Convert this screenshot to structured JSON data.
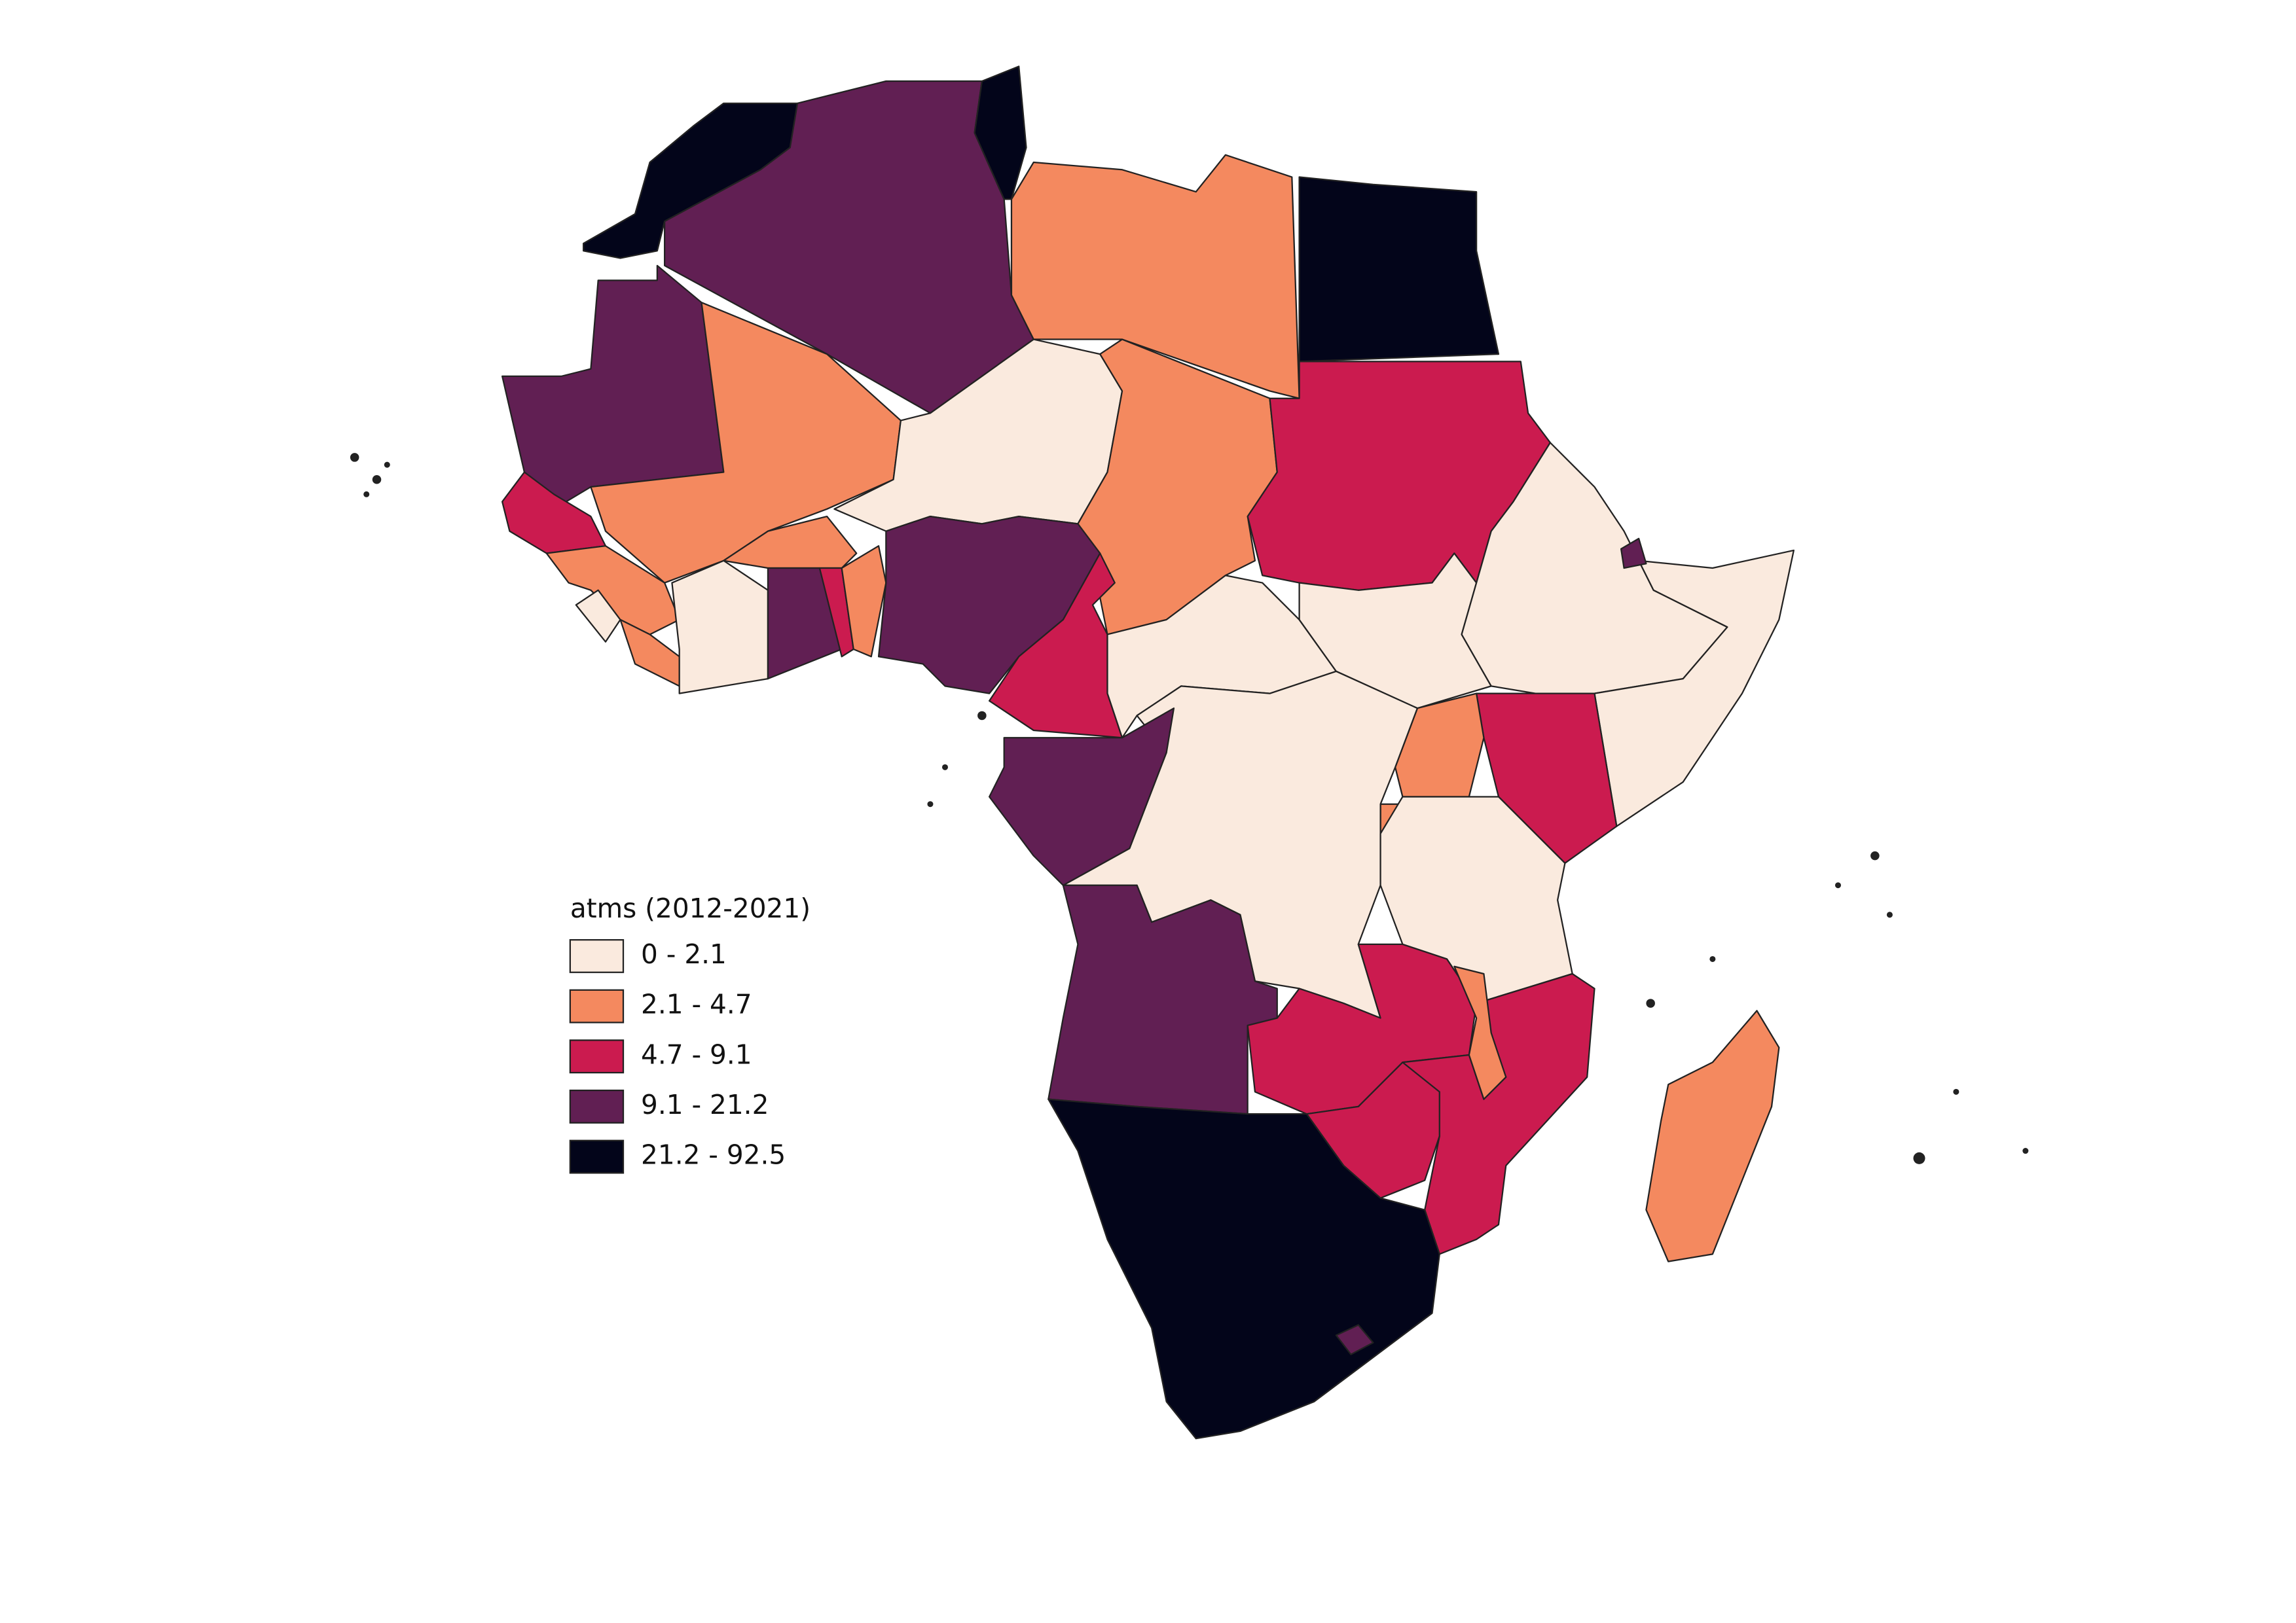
{
  "legend": {
    "title": "atms (2012-2021)",
    "classes": [
      {
        "label": "0 - 2.1",
        "color": "#faeade"
      },
      {
        "label": "2.1 - 4.7",
        "color": "#f4895f"
      },
      {
        "label": "4.7 - 9.1",
        "color": "#cb1b4f"
      },
      {
        "label": "9.1 - 21.2",
        "color": "#611f53"
      },
      {
        "label": "21.2 - 92.5",
        "color": "#03051a"
      }
    ]
  }
}
